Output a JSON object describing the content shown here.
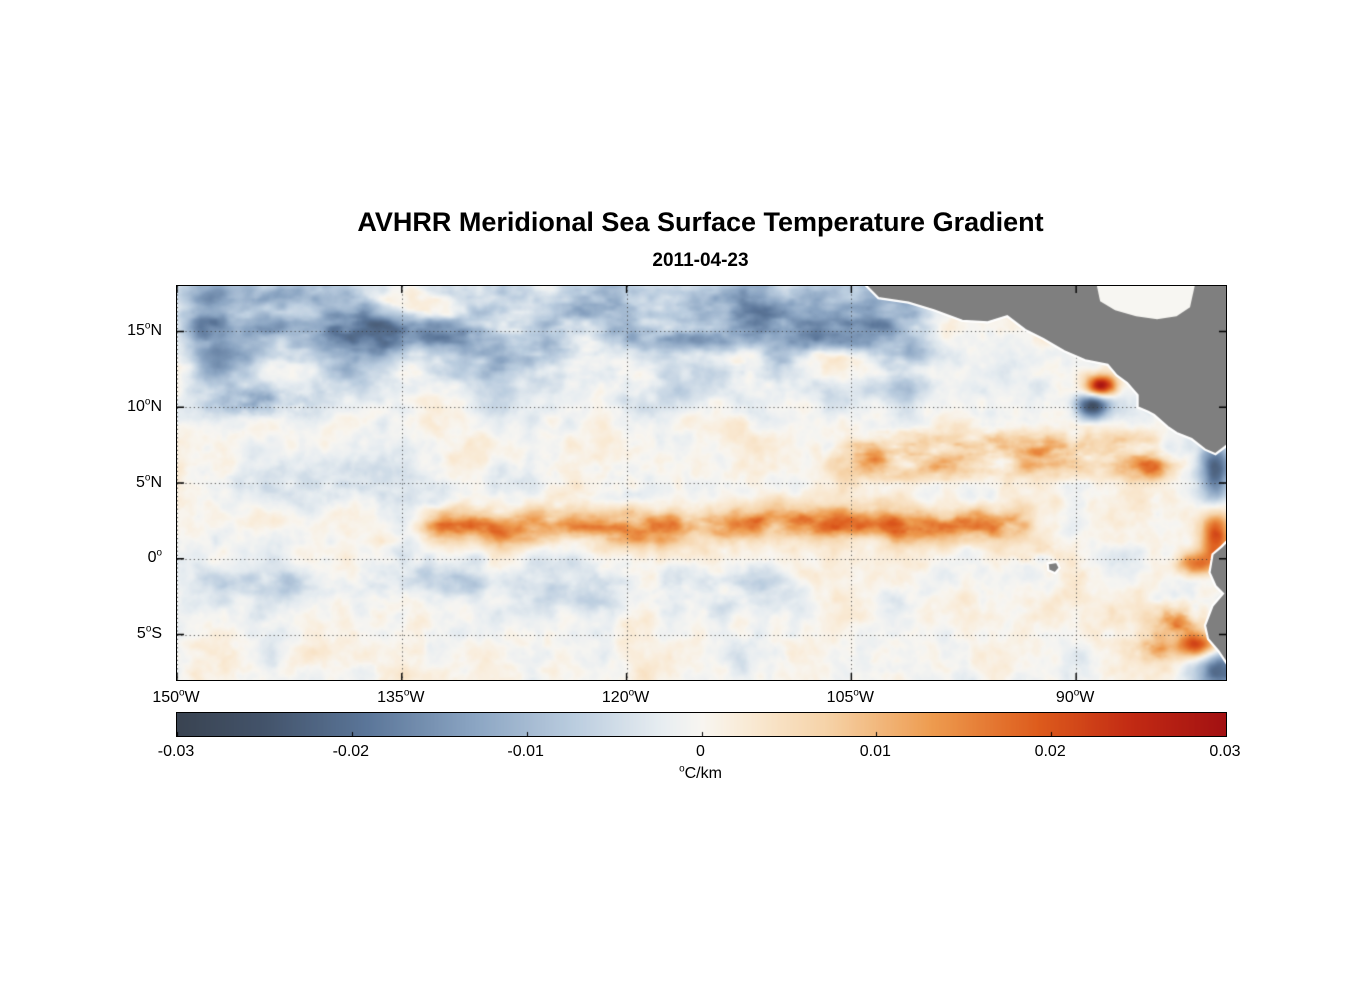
{
  "figure": {
    "title": "AVHRR Meridional Sea Surface Temperature Gradient",
    "subtitle": "2011-04-23"
  },
  "chart_data": {
    "type": "heatmap",
    "title": "AVHRR Meridional Sea Surface Temperature Gradient",
    "date": "2011-04-23",
    "units": "°C/km",
    "unit_label": {
      "num": "",
      "sup": "o",
      "rest": "C/km"
    },
    "lon_range": [
      -150,
      -80
    ],
    "lat_range": [
      -8,
      18
    ],
    "lon_ticks": [
      {
        "value": -150,
        "num": "150",
        "sup": "o",
        "suffix": "W"
      },
      {
        "value": -135,
        "num": "135",
        "sup": "o",
        "suffix": "W"
      },
      {
        "value": -120,
        "num": "120",
        "sup": "o",
        "suffix": "W"
      },
      {
        "value": -105,
        "num": "105",
        "sup": "o",
        "suffix": "W"
      },
      {
        "value": -90,
        "num": "90",
        "sup": "o",
        "suffix": "W"
      }
    ],
    "lat_ticks": [
      {
        "value": 15,
        "num": "15",
        "sup": "o",
        "suffix": "N"
      },
      {
        "value": 10,
        "num": "10",
        "sup": "o",
        "suffix": "N"
      },
      {
        "value": 5,
        "num": "5",
        "sup": "o",
        "suffix": "N"
      },
      {
        "value": 0,
        "num": "0",
        "sup": "o",
        "suffix": ""
      },
      {
        "value": -5,
        "num": "5",
        "sup": "o",
        "suffix": "S"
      }
    ],
    "grid": {
      "style": "dotted",
      "color": "#3c3c3c"
    },
    "colorbar": {
      "min": -0.03,
      "max": 0.03,
      "tick_values": [
        -0.03,
        -0.02,
        -0.01,
        0,
        0.01,
        0.02,
        0.03
      ],
      "tick_labels": [
        "-0.03",
        "-0.02",
        "-0.01",
        "0",
        "0.01",
        "0.02",
        "0.03"
      ]
    },
    "colormap_stops": [
      [
        0.0,
        "#3a4452"
      ],
      [
        0.08,
        "#43536a"
      ],
      [
        0.18,
        "#5b7699"
      ],
      [
        0.28,
        "#8aa4c2"
      ],
      [
        0.38,
        "#bccee0"
      ],
      [
        0.46,
        "#e7edf1"
      ],
      [
        0.5,
        "#f8f6f1"
      ],
      [
        0.54,
        "#faecd8"
      ],
      [
        0.62,
        "#f6d3a8"
      ],
      [
        0.72,
        "#ee9c50"
      ],
      [
        0.82,
        "#de5d1d"
      ],
      [
        0.91,
        "#c32b14"
      ],
      [
        1.0,
        "#a31112"
      ]
    ],
    "land": {
      "color": "#7f7f7f",
      "outline": "#ffffff",
      "masked_water_color": "#f7f6f2",
      "polygons": [
        {
          "name": "central-america",
          "points": [
            [
              -104.4,
              18.4
            ],
            [
              -103.2,
              17.2
            ],
            [
              -101.2,
              16.9
            ],
            [
              -99.5,
              16.4
            ],
            [
              -97.6,
              15.7
            ],
            [
              -95.9,
              15.6
            ],
            [
              -94.6,
              16.0
            ],
            [
              -93.4,
              15.1
            ],
            [
              -92.2,
              14.5
            ],
            [
              -90.8,
              13.7
            ],
            [
              -89.4,
              13.1
            ],
            [
              -87.9,
              12.8
            ],
            [
              -87.3,
              12.1
            ],
            [
              -86.6,
              11.6
            ],
            [
              -85.9,
              10.8
            ],
            [
              -85.9,
              10.0
            ],
            [
              -85.2,
              9.7
            ],
            [
              -84.8,
              9.5
            ],
            [
              -83.9,
              8.7
            ],
            [
              -83.3,
              8.3
            ],
            [
              -82.3,
              7.9
            ],
            [
              -81.4,
              7.2
            ],
            [
              -80.7,
              6.9
            ],
            [
              -79.9,
              7.5
            ],
            [
              -79.4,
              7.0
            ],
            [
              -78.5,
              7.5
            ],
            [
              -78.5,
              18.4
            ]
          ]
        },
        {
          "name": "south-america",
          "points": [
            [
              -78.0,
              1.6
            ],
            [
              -79.5,
              1.6
            ],
            [
              -80.3,
              0.8
            ],
            [
              -80.9,
              0.3
            ],
            [
              -81.1,
              -0.9
            ],
            [
              -80.7,
              -1.8
            ],
            [
              -80.2,
              -2.3
            ],
            [
              -80.9,
              -3.1
            ],
            [
              -81.4,
              -4.4
            ],
            [
              -81.2,
              -5.3
            ],
            [
              -80.5,
              -6.1
            ],
            [
              -79.9,
              -7.0
            ],
            [
              -79.3,
              -8.4
            ],
            [
              -78.0,
              -8.4
            ]
          ]
        },
        {
          "name": "galapagos-islands",
          "points": [
            [
              -91.9,
              -0.3
            ],
            [
              -91.3,
              -0.2
            ],
            [
              -91.1,
              -0.6
            ],
            [
              -91.4,
              -0.95
            ],
            [
              -91.85,
              -0.75
            ]
          ]
        }
      ],
      "water_patches": [
        {
          "name": "caribbean-sea",
          "points": [
            [
              -88.7,
              18.4
            ],
            [
              -88.4,
              17.0
            ],
            [
              -87.4,
              16.4
            ],
            [
              -86.0,
              16.0
            ],
            [
              -84.6,
              15.8
            ],
            [
              -83.3,
              16.0
            ],
            [
              -82.4,
              16.6
            ],
            [
              -82.0,
              18.4
            ]
          ]
        }
      ]
    },
    "field": {
      "seed": 11,
      "background": [
        {
          "kind": "noise",
          "scale": 3.2,
          "amp": 0.005
        },
        {
          "kind": "noise",
          "scale": 1.25,
          "amp": 0.0028
        },
        {
          "kind": "noise",
          "scale": 0.55,
          "amp": 0.0012
        }
      ],
      "features": [
        {
          "kind": "lat_band",
          "name": "north-negative-patches",
          "center": 15.3,
          "sigma": 2.9,
          "amp": -0.021,
          "lon0": -151,
          "lon1": -98,
          "fade": 3,
          "meander_amp": 0.8,
          "meander_scale": 6,
          "patch": {
            "bias": 0.38,
            "gain": 0.95,
            "slon": 4.6,
            "slat": 2.1
          }
        },
        {
          "kind": "blob",
          "name": "west-negative-10n",
          "lon": -144.5,
          "lat": 10.3,
          "slon": 2.6,
          "slat": 0.75,
          "amp": -0.017,
          "patch": true
        },
        {
          "kind": "lat_band",
          "name": "equatorial-front-positive",
          "center": 2.15,
          "sigma": 0.85,
          "amp": 0.0235,
          "lon0": -135.5,
          "lon1": -91.5,
          "fade": 3.5,
          "meander_amp": 0.75,
          "meander_scale": 5.5,
          "patch": {
            "bias": 0.62,
            "gain": 0.5,
            "slon": 2.3,
            "slat": 1.1
          }
        },
        {
          "kind": "lat_band",
          "name": "south-equatorial-negative",
          "center": -1.9,
          "sigma": 1.15,
          "amp": -0.0095,
          "lon0": -151,
          "lon1": -106,
          "fade": 4,
          "meander_amp": 0.5,
          "meander_scale": 5,
          "patch": {
            "bias": 0.45,
            "gain": 0.7,
            "slon": 3.0,
            "slat": 1.4
          }
        },
        {
          "kind": "lat_band",
          "name": "5n-weak-negative",
          "center": 4.8,
          "sigma": 1.2,
          "amp": -0.006,
          "lon0": -151,
          "lon1": -116,
          "fade": 4,
          "meander_amp": 0.5,
          "meander_scale": 4.5,
          "patch": {
            "bias": 0.4,
            "gain": 0.75,
            "slon": 2.6,
            "slat": 1.2
          }
        },
        {
          "kind": "lat_band",
          "name": "itcz-positive-streaks",
          "center": 6.8,
          "sigma": 1.15,
          "amp": 0.0145,
          "lon0": -107,
          "lon1": -83,
          "fade": 2.5,
          "meander_amp": 0.9,
          "meander_scale": 4,
          "patch": {
            "bias": 0.42,
            "gain": 0.8,
            "slon": 2.2,
            "slat": 0.9
          }
        },
        {
          "kind": "blob",
          "name": "tehuantepec-positive",
          "lon": -88.3,
          "lat": 11.4,
          "slon": 0.75,
          "slat": 0.5,
          "amp": 0.03
        },
        {
          "kind": "blob",
          "name": "tehuantepec-negative",
          "lon": -88.9,
          "lat": 10.1,
          "slon": 0.8,
          "slat": 0.6,
          "amp": -0.027
        },
        {
          "kind": "blob",
          "name": "coastal-negative-panama",
          "lon": -80.7,
          "lat": 5.3,
          "slon": 0.75,
          "slat": 1.9,
          "amp": -0.024
        },
        {
          "kind": "blob",
          "name": "coastal-positive-ecuador",
          "lon": -80.7,
          "lat": 1.8,
          "slon": 0.7,
          "slat": 1.6,
          "amp": 0.025
        },
        {
          "kind": "blob",
          "name": "coastal-positive-peru-1",
          "lon": -83.1,
          "lat": -4.1,
          "slon": 1.2,
          "slat": 0.85,
          "amp": 0.022,
          "patch": true
        },
        {
          "kind": "blob",
          "name": "coastal-positive-peru-2",
          "lon": -81.9,
          "lat": -5.7,
          "slon": 0.95,
          "slat": 0.6,
          "amp": 0.021
        },
        {
          "kind": "blob",
          "name": "coastal-positive-peru-3",
          "lon": -84.8,
          "lat": -5.9,
          "slon": 1.0,
          "slat": 0.6,
          "amp": 0.018,
          "patch": true
        },
        {
          "kind": "blob",
          "name": "coastal-positive-equator",
          "lon": -82.1,
          "lat": -0.4,
          "slon": 0.8,
          "slat": 0.55,
          "amp": 0.016
        },
        {
          "kind": "blob",
          "name": "costa-rica-positive",
          "lon": -84.8,
          "lat": 6.1,
          "slon": 1.6,
          "slat": 0.6,
          "amp": 0.013,
          "patch": true
        },
        {
          "kind": "blob",
          "name": "corner-negative-peru",
          "lon": -80.5,
          "lat": -7.4,
          "slon": 1.1,
          "slat": 0.9,
          "amp": -0.021
        },
        {
          "kind": "blob",
          "name": "galapagos-front-positive",
          "lon": -92.5,
          "lat": 0.3,
          "slon": 1.3,
          "slat": 0.6,
          "amp": 0.012,
          "patch": true
        }
      ]
    }
  }
}
